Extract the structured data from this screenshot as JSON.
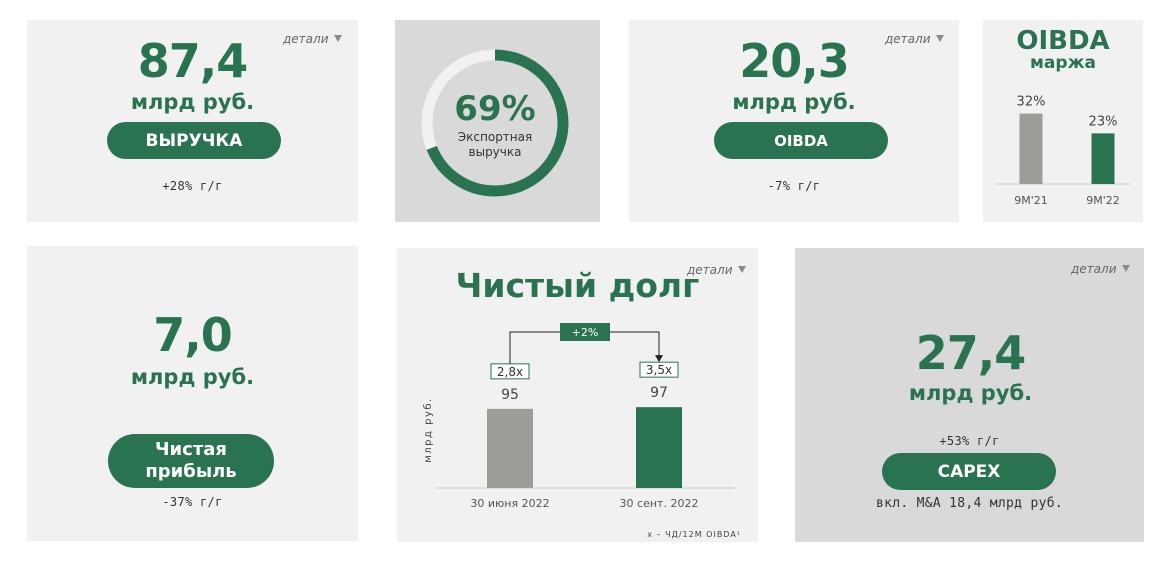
{
  "details_label": "детали",
  "revenue": {
    "value": "87,4",
    "unit": "млрд руб.",
    "button_label": "ВЫРУЧКА",
    "change": "+28% г/г"
  },
  "export": {
    "percent_text": "69%",
    "share": 0.69,
    "label_line1": "Экспортная",
    "label_line2": "выручка"
  },
  "oibda": {
    "value": "20,3",
    "unit": "млрд руб.",
    "button_label": "OIBDA",
    "change": "-7% г/г"
  },
  "margin": {
    "title_line1": "OIBDA",
    "title_line2": "маржа"
  },
  "net_profit": {
    "value": "7,0",
    "unit": "млрд руб.",
    "button_line1": "Чистая",
    "button_line2": "прибыль",
    "change": "-37% г/г"
  },
  "net_debt": {
    "title": "Чистый долг",
    "change_badge": "+2%",
    "footnote": "x – ЧД/12М OIBDA¹"
  },
  "capex": {
    "value": "27,4",
    "unit": "млрд руб.",
    "change": "+53% г/г",
    "button_label": "CAPEX",
    "note": "вкл. M&A 18,4 млрд руб."
  },
  "colors": {
    "brand_green": "#2a7350",
    "grey_bar": "#9d9d98",
    "card_light": "#f1f1f1",
    "card_dark": "#d9d9d9"
  },
  "chart_data": [
    {
      "type": "bar",
      "title": "",
      "categories": [
        "9M'21",
        "9M'22"
      ],
      "values": [
        32,
        23
      ],
      "value_labels": [
        "32%",
        "23%"
      ],
      "unit": "%",
      "ylim": [
        0,
        50
      ],
      "bar_colors": [
        "#9d9d98",
        "#2a7350"
      ],
      "grid": false
    },
    {
      "type": "bar",
      "title": "Чистый долг",
      "categories": [
        "30 июня 2022",
        "30 сент. 2022"
      ],
      "values": [
        95,
        97
      ],
      "value_labels": [
        "95",
        "97"
      ],
      "multiples": [
        "2,8x",
        "3,5x"
      ],
      "ylabel": "млрд руб.",
      "ylim": [
        0,
        120
      ],
      "bar_colors": [
        "#9d9d98",
        "#2a7350"
      ],
      "grid": false
    }
  ]
}
